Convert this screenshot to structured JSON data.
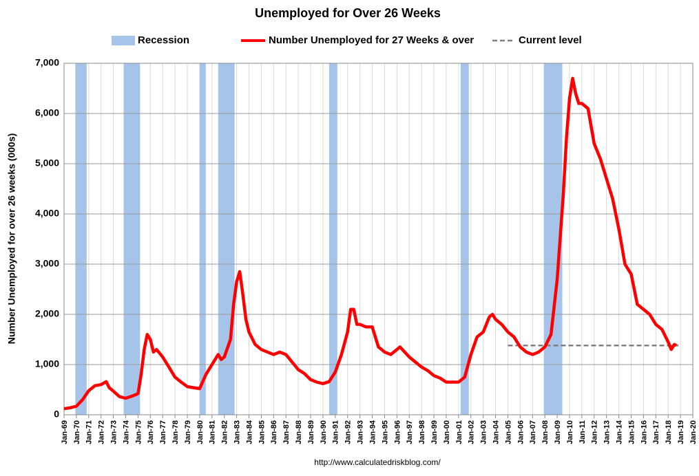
{
  "chart_data": {
    "type": "line",
    "title": "Unemployed for Over 26 Weeks",
    "y_label": "Number Unemployed for over 26 weeks (000s)",
    "source": "http://www.calculatedriskblog.com/",
    "xlim": [
      "Jan-69",
      "Jan-20"
    ],
    "xticks": [
      "Jan-69",
      "Jan-70",
      "Jan-71",
      "Jan-72",
      "Jan-73",
      "Jan-74",
      "Jan-75",
      "Jan-76",
      "Jan-77",
      "Jan-78",
      "Jan-79",
      "Jan-80",
      "Jan-81",
      "Jan-82",
      "Jan-83",
      "Jan-84",
      "Jan-85",
      "Jan-86",
      "Jan-87",
      "Jan-88",
      "Jan-89",
      "Jan-90",
      "Jan-91",
      "Jan-92",
      "Jan-93",
      "Jan-94",
      "Jan-95",
      "Jan-96",
      "Jan-97",
      "Jan-98",
      "Jan-99",
      "Jan-00",
      "Jan-01",
      "Jan-02",
      "Jan-03",
      "Jan-04",
      "Jan-05",
      "Jan-06",
      "Jan-07",
      "Jan-08",
      "Jan-09",
      "Jan-10",
      "Jan-11",
      "Jan-12",
      "Jan-13",
      "Jan-14",
      "Jan-15",
      "Jan-16",
      "Jan-17",
      "Jan-18",
      "Jan-19",
      "Jan-20"
    ],
    "ylim": [
      0,
      7000
    ],
    "yticks": [
      0,
      {
        "value": 1000,
        "label": "1,000"
      },
      {
        "value": 2000,
        "label": "2,000"
      },
      {
        "value": 3000,
        "label": "3,000"
      },
      {
        "value": 4000,
        "label": "4,000"
      },
      {
        "value": 5000,
        "label": "5,000"
      },
      {
        "value": 6000,
        "label": "6,000"
      },
      {
        "value": 7000,
        "label": "7,000"
      }
    ],
    "grid": true,
    "legend": "top",
    "recessions": {
      "name": "Recession",
      "color": "#a6c4ea",
      "periods": [
        {
          "start": "Dec-69",
          "end": "Nov-70"
        },
        {
          "start": "Nov-73",
          "end": "Mar-75"
        },
        {
          "start": "Jan-80",
          "end": "Jul-80"
        },
        {
          "start": "Jul-81",
          "end": "Nov-82"
        },
        {
          "start": "Jul-90",
          "end": "Mar-91"
        },
        {
          "start": "Mar-01",
          "end": "Nov-01"
        },
        {
          "start": "Dec-07",
          "end": "Jun-09"
        }
      ]
    },
    "current_level": {
      "name": "Current level",
      "color": "#808080",
      "value": 1380,
      "x": [
        "Jan-05",
        "Nov-18"
      ]
    },
    "x": [
      "Jan-69",
      "Jul-69",
      "Jan-70",
      "Jul-70",
      "Jan-71",
      "Jul-71",
      "Jan-72",
      "Jun-72",
      "Sep-72",
      "Jan-73",
      "Jul-73",
      "Jan-74",
      "Jul-74",
      "Jan-75",
      "Apr-75",
      "Jul-75",
      "Oct-75",
      "Jan-76",
      "Apr-76",
      "Jul-76",
      "Jan-77",
      "Jul-77",
      "Jan-78",
      "Jul-78",
      "Jan-79",
      "Jul-79",
      "Jan-80",
      "Jul-80",
      "Jan-81",
      "Jul-81",
      "Oct-81",
      "Jan-82",
      "Jul-82",
      "Oct-82",
      "Jan-83",
      "Apr-83",
      "Jul-83",
      "Oct-83",
      "Jan-84",
      "Jul-84",
      "Jan-85",
      "Jul-85",
      "Jan-86",
      "Jul-86",
      "Jan-87",
      "Jul-87",
      "Jan-88",
      "Jul-88",
      "Jan-89",
      "Jul-89",
      "Jan-90",
      "Jul-90",
      "Jan-91",
      "Jul-91",
      "Jan-92",
      "Apr-92",
      "Jul-92",
      "Oct-92",
      "Jan-93",
      "Jul-93",
      "Jan-94",
      "Jul-94",
      "Jan-95",
      "Jul-95",
      "Jan-96",
      "Apr-96",
      "Jan-97",
      "Jul-97",
      "Jan-98",
      "Jul-98",
      "Jan-99",
      "Jul-99",
      "Jan-00",
      "Jul-00",
      "Jan-01",
      "Jul-01",
      "Jan-02",
      "Jul-02",
      "Jan-03",
      "Jul-03",
      "Oct-03",
      "Jan-04",
      "Jul-04",
      "Jan-05",
      "Jul-05",
      "Jan-06",
      "Jul-06",
      "Jan-07",
      "Jul-07",
      "Jan-08",
      "Jul-08",
      "Jan-09",
      "Jul-09",
      "Oct-09",
      "Jan-10",
      "Apr-10",
      "Jul-10",
      "Oct-10",
      "Jan-11",
      "Jul-11",
      "Jan-12",
      "Jul-12",
      "Jan-13",
      "Jul-13",
      "Jan-14",
      "Jul-14",
      "Jan-15",
      "Jul-15",
      "Jan-16",
      "Jul-16",
      "Jan-17",
      "Jul-17",
      "Jan-18",
      "Apr-18",
      "Jul-18",
      "Sep-18"
    ],
    "series": [
      {
        "name": "Number Unemployed for 27 Weeks & over",
        "color": "#ff0000",
        "values": [
          120,
          140,
          170,
          300,
          480,
          580,
          600,
          660,
          540,
          470,
          360,
          330,
          370,
          420,
          800,
          1300,
          1600,
          1500,
          1250,
          1300,
          1150,
          950,
          750,
          650,
          560,
          540,
          520,
          800,
          1000,
          1200,
          1100,
          1150,
          1500,
          2200,
          2650,
          2850,
          2400,
          1900,
          1650,
          1400,
          1300,
          1250,
          1200,
          1250,
          1200,
          1050,
          900,
          820,
          700,
          650,
          620,
          660,
          850,
          1200,
          1650,
          2100,
          2100,
          1800,
          1800,
          1750,
          1750,
          1350,
          1250,
          1200,
          1300,
          1350,
          1150,
          1050,
          950,
          880,
          780,
          730,
          650,
          650,
          650,
          750,
          1200,
          1550,
          1650,
          1950,
          2000,
          1900,
          1800,
          1650,
          1550,
          1350,
          1250,
          1200,
          1250,
          1350,
          1600,
          2700,
          4400,
          5500,
          6300,
          6700,
          6400,
          6200,
          6200,
          6100,
          5400,
          5100,
          4700,
          4300,
          3700,
          3000,
          2800,
          2200,
          2100,
          2000,
          1800,
          1700,
          1450,
          1300,
          1400,
          1380
        ]
      }
    ]
  }
}
